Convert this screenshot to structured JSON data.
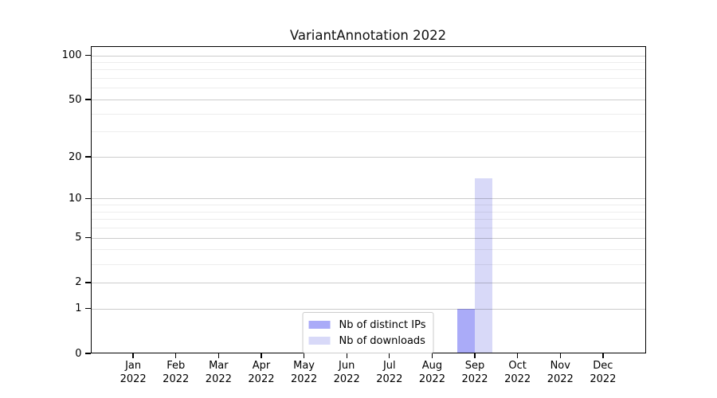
{
  "chart_data": {
    "type": "bar",
    "title": "VariantAnnotation 2022",
    "categories": [
      "Jan 2022",
      "Feb 2022",
      "Mar 2022",
      "Apr 2022",
      "May 2022",
      "Jun 2022",
      "Jul 2022",
      "Aug 2022",
      "Sep 2022",
      "Oct 2022",
      "Nov 2022",
      "Dec 2022"
    ],
    "series": [
      {
        "name": "Nb of distinct IPs",
        "color": "#aaabf8",
        "values": [
          0,
          0,
          0,
          0,
          0,
          0,
          0,
          0,
          1,
          0,
          0,
          0
        ]
      },
      {
        "name": "Nb of downloads",
        "color": "#d8d9f8",
        "values": [
          0,
          0,
          0,
          0,
          0,
          0,
          0,
          0,
          14,
          0,
          0,
          0
        ]
      }
    ],
    "xlabel": "",
    "ylabel": "",
    "y_axis": {
      "scale": "log1p",
      "major_ticks": [
        0,
        1,
        2,
        5,
        10,
        20,
        50,
        100
      ],
      "minor_ticks": [
        3,
        4,
        6,
        7,
        8,
        9,
        30,
        40,
        60,
        70,
        80,
        90
      ],
      "ylim": [
        0,
        115.5
      ]
    },
    "grid": "on",
    "grid_major_color": "#cbcbcb",
    "grid_minor_color": "#ededed",
    "legend_position": "lower-center-inside",
    "legend_entries": [
      "Nb of distinct IPs",
      "Nb of downloads"
    ]
  }
}
